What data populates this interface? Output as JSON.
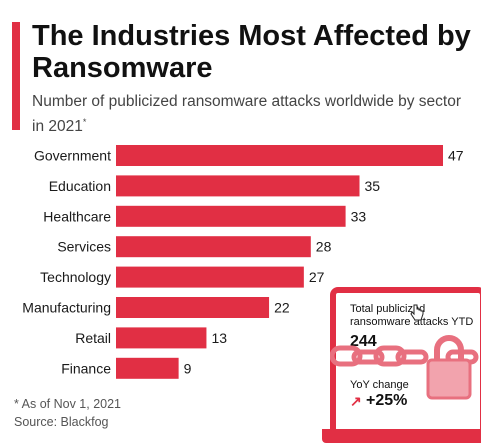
{
  "header": {
    "title": "The Industries Most Affected by Ransomware",
    "subtitle": "Number of publicized ransomware attacks worldwide by sector in 2021",
    "subtitle_marker": "*"
  },
  "footer": {
    "footnote": "* As of Nov 1, 2021",
    "source": "Source: Blackfog"
  },
  "infobox": {
    "total_label": "Total publicized ransomware attacks YTD",
    "total_value": "244",
    "yoy_label": "YoY change",
    "yoy_value": "+25%",
    "yoy_icon": "arrow-up-right-icon"
  },
  "colors": {
    "accent": "#e12f44",
    "bar": "#e12f44"
  },
  "chart_data": {
    "type": "bar",
    "orientation": "horizontal",
    "title": "The Industries Most Affected by Ransomware",
    "categories": [
      "Government",
      "Education",
      "Healthcare",
      "Services",
      "Technology",
      "Manufacturing",
      "Retail",
      "Finance"
    ],
    "values": [
      47,
      35,
      33,
      28,
      27,
      22,
      13,
      9
    ],
    "xlim": [
      0,
      47
    ],
    "grid": false,
    "legend": "none",
    "data_labels": true
  }
}
